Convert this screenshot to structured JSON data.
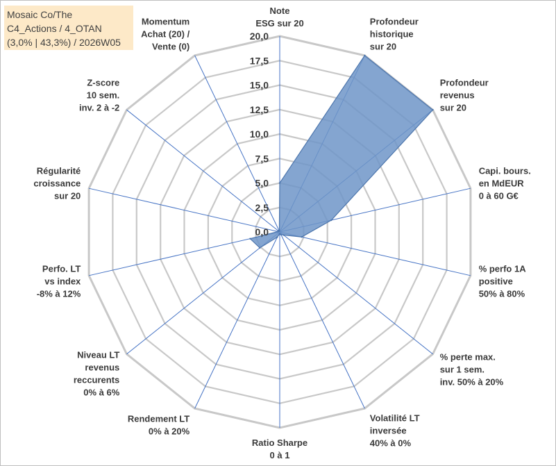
{
  "title_lines": [
    "Mosaic Co/The",
    "C4_Actions / 4_OTAN",
    "(3,0% | 43,3%) / 2026W05"
  ],
  "colors": {
    "fill": "#6f95c8",
    "stroke": "#4d76ad",
    "grid": "#c8c8c8",
    "axis": "#4472c4"
  },
  "chart_data": {
    "type": "radar",
    "rmax": 20,
    "ticks": [
      "0,0",
      "2,5",
      "5,0",
      "7,5",
      "10,0",
      "12,5",
      "15,0",
      "17,5",
      "20,0"
    ],
    "axes": [
      {
        "lines": [
          "Note",
          "ESG sur 20"
        ],
        "value": 5.0
      },
      {
        "lines": [
          "Profondeur",
          "historique",
          "sur 20"
        ],
        "value": 20.0
      },
      {
        "lines": [
          "Profondeur",
          "revenus",
          "sur 20"
        ],
        "value": 20.0
      },
      {
        "lines": [
          "Capi. bours.",
          "en MdEUR",
          "0 à 60 G€"
        ],
        "value": 5.4
      },
      {
        "lines": [
          "% perfo 1A",
          "positive",
          "50% à 80%"
        ],
        "value": 2.3
      },
      {
        "lines": [
          "% perte max.",
          "sur 1 sem.",
          "inv. 50% à 20%"
        ],
        "value": 0.5
      },
      {
        "lines": [
          "Volatilité LT",
          "inversée",
          "40% à 0%"
        ],
        "value": 0.3
      },
      {
        "lines": [
          "Ratio Sharpe",
          "0 à 1"
        ],
        "value": 0.2
      },
      {
        "lines": [
          "Rendement LT",
          "0% à 20%"
        ],
        "value": 0.6
      },
      {
        "lines": [
          "Niveau LT",
          "revenus",
          "reccurents",
          "0% à 6%"
        ],
        "value": 2.6
      },
      {
        "lines": [
          "Perfo. LT",
          "vs index",
          "-8% à 12%"
        ],
        "value": 3.1
      },
      {
        "lines": [
          "Régularité",
          "croissance",
          "sur 20"
        ],
        "value": 0.2
      },
      {
        "lines": [
          "Z-score",
          "10 sem.",
          "inv. 2 à -2"
        ],
        "value": 0.2
      },
      {
        "lines": [
          "Momentum",
          "Achat (20) /",
          "Vente (0)"
        ],
        "value": 0.1
      }
    ]
  }
}
